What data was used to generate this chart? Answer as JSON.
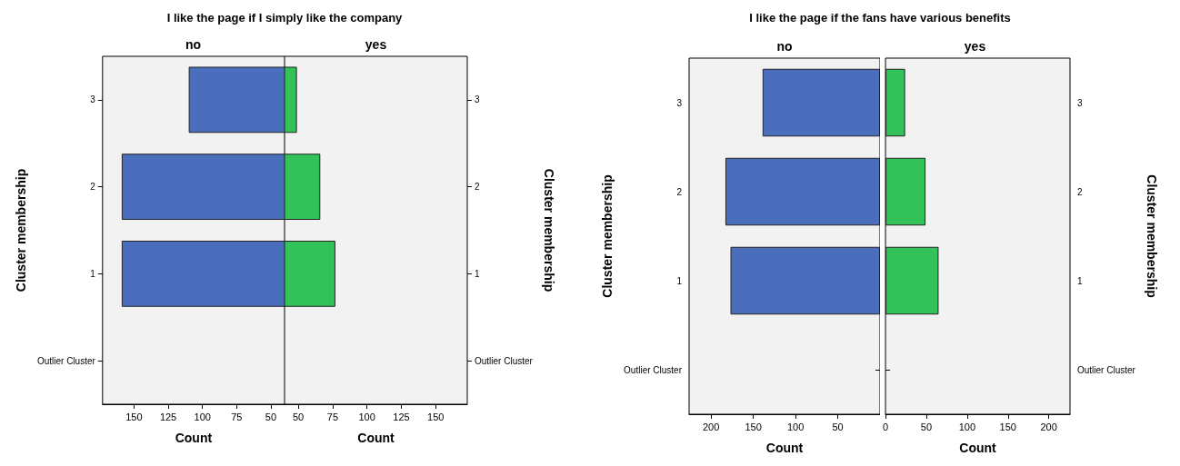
{
  "chart_data": [
    {
      "type": "bar",
      "orientation": "horizontal",
      "title": "I like the page if I simply like the company",
      "xlabel": "Count",
      "ylabel": "Cluster membership",
      "categories": [
        "3",
        "2",
        "1",
        "Outlier Cluster"
      ],
      "series": [
        {
          "name": "no",
          "color": "#4a6ebb",
          "values": [
            110,
            159,
            159,
            null
          ]
        }
      ],
      "xlim": [
        173,
        40
      ],
      "xticks": [
        150,
        125,
        100,
        75,
        50
      ],
      "grid": false
    },
    {
      "type": "bar",
      "orientation": "horizontal",
      "xlabel": "Count",
      "y2label": "Cluster membership",
      "categories": [
        "3",
        "2",
        "1",
        "Outlier Cluster"
      ],
      "series": [
        {
          "name": "yes",
          "color": "#33c15a",
          "values": [
            49,
            66,
            77,
            null
          ]
        }
      ],
      "xlim": [
        40,
        173
      ],
      "xticks": [
        50,
        75,
        100,
        125,
        150
      ],
      "grid": false
    },
    {
      "type": "bar",
      "orientation": "horizontal",
      "title": "I like the page if the fans have various benefits",
      "xlabel": "Count",
      "ylabel": "Cluster membership",
      "categories": [
        "3",
        "2",
        "1",
        "Outlier Cluster"
      ],
      "series": [
        {
          "name": "no",
          "color": "#4a6ebb",
          "values": [
            139,
            183,
            177,
            null
          ]
        }
      ],
      "xlim": [
        226,
        0
      ],
      "xticks": [
        200,
        150,
        100,
        50
      ],
      "grid": false
    },
    {
      "type": "bar",
      "orientation": "horizontal",
      "xlabel": "Count",
      "y2label": "Cluster membership",
      "categories": [
        "3",
        "2",
        "1",
        "Outlier Cluster"
      ],
      "series": [
        {
          "name": "yes",
          "color": "#33c15a",
          "values": [
            24,
            49,
            65,
            null
          ]
        }
      ],
      "xlim": [
        0,
        226
      ],
      "xticks": [
        0,
        50,
        100,
        150,
        200
      ],
      "grid": false
    }
  ]
}
